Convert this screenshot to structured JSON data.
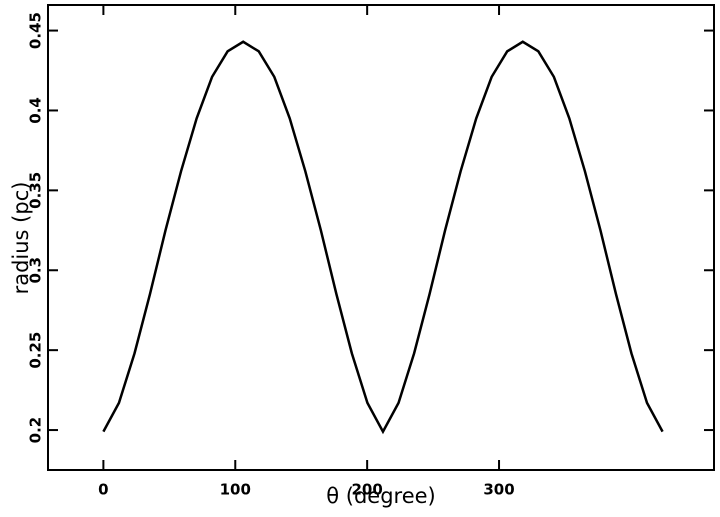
{
  "chart_data": {
    "type": "line",
    "xlabel": "θ    (degree)",
    "ylabel": "radius (pc)",
    "x": [
      0,
      11.8,
      23.6,
      35.3,
      47.1,
      58.9,
      70.7,
      82.4,
      94.2,
      106,
      117.8,
      129.6,
      141.3,
      153.1,
      164.9,
      176.7,
      188.4,
      200.2,
      212,
      223.8,
      235.6,
      247.3,
      259.1,
      270.9,
      282.7,
      294.4,
      306.2,
      318,
      329.8,
      341.6,
      353.3,
      365.1,
      376.9,
      388.7,
      400.4,
      412.2,
      424
    ],
    "series": [
      {
        "color": "#000000",
        "values": [
          0.199,
          0.217,
          0.248,
          0.285,
          0.325,
          0.362,
          0.395,
          0.421,
          0.437,
          0.443,
          0.437,
          0.421,
          0.395,
          0.362,
          0.325,
          0.285,
          0.248,
          0.217,
          0.199,
          0.217,
          0.248,
          0.285,
          0.325,
          0.362,
          0.395,
          0.421,
          0.437,
          0.443,
          0.437,
          0.421,
          0.395,
          0.362,
          0.325,
          0.285,
          0.248,
          0.217,
          0.199
        ]
      }
    ],
    "xlim": [
      -42,
      463
    ],
    "ylim": [
      0.175,
      0.466
    ],
    "xticks": [
      0,
      100,
      200,
      300
    ],
    "yticks": [
      0.2,
      0.25,
      0.3,
      0.35,
      0.4,
      0.45
    ]
  }
}
